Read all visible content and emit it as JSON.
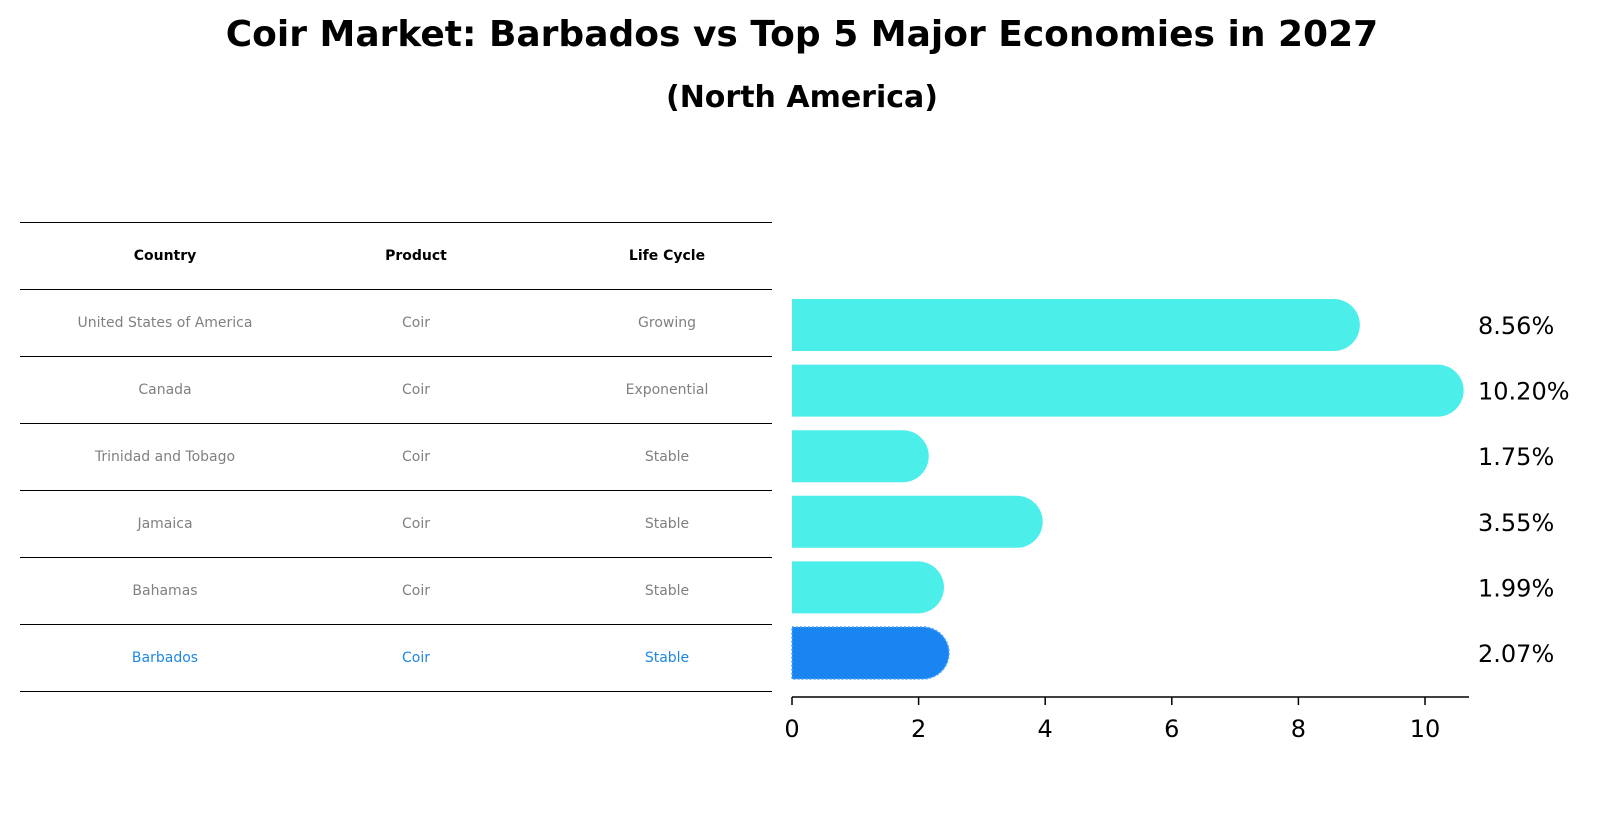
{
  "title": "Coir Market: Barbados vs Top 5 Major Economies in 2027",
  "subtitle": "(North America)",
  "table": {
    "headers": [
      "Country",
      "Product",
      "Life Cycle"
    ],
    "rows": [
      {
        "country": "United States of America",
        "product": "Coir",
        "life_cycle": "Growing"
      },
      {
        "country": "Canada",
        "product": "Coir",
        "life_cycle": "Exponential"
      },
      {
        "country": "Trinidad and Tobago",
        "product": "Coir",
        "life_cycle": "Stable"
      },
      {
        "country": "Jamaica",
        "product": "Coir",
        "life_cycle": "Stable"
      },
      {
        "country": "Bahamas",
        "product": "Coir",
        "life_cycle": "Stable"
      },
      {
        "country": "Barbados",
        "product": "Coir",
        "life_cycle": "Stable"
      }
    ]
  },
  "chart_data": {
    "type": "bar",
    "orientation": "horizontal",
    "title": "Coir Market: Barbados vs Top 5 Major Economies in 2027",
    "subtitle": "(North America)",
    "categories": [
      "United States of America",
      "Canada",
      "Trinidad and Tobago",
      "Jamaica",
      "Bahamas",
      "Barbados"
    ],
    "values": [
      8.56,
      10.2,
      1.75,
      3.55,
      1.99,
      2.07
    ],
    "value_labels": [
      "8.56%",
      "10.20%",
      "1.75%",
      "3.55%",
      "1.99%",
      "2.07%"
    ],
    "xlim": [
      0,
      10.7
    ],
    "xticks": [
      0,
      2,
      4,
      6,
      8,
      10
    ],
    "xlabel": "",
    "ylabel": "",
    "grid": false,
    "legend": "none",
    "highlight_index": 5
  },
  "colors": {
    "bar": "#4ceeea",
    "highlight": "#1a85f0",
    "highlight_text": "#1e88e5",
    "muted_text": "#808080"
  }
}
